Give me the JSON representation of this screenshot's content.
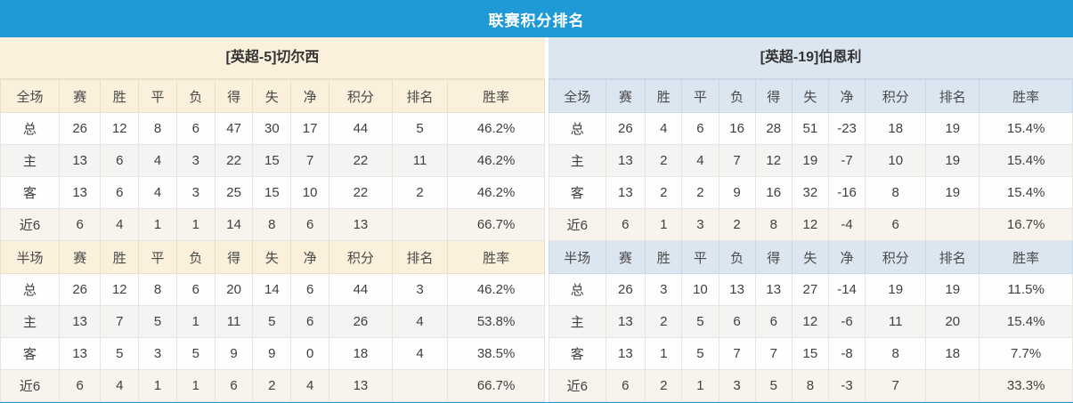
{
  "title": "联赛积分排名",
  "colors": {
    "accent_blue": "#1F9AD7",
    "cream_header": "#FAF0DB",
    "blue_header": "#DCE6F1",
    "points_red": "#E54527",
    "rank_blue": "#3E8EC8",
    "home_label_red": "#C52233",
    "away_label_blue": "#2424AE"
  },
  "column_keys": [
    "scope",
    "matches",
    "wins",
    "draws",
    "losses",
    "goals-for",
    "goals-against",
    "goal-diff",
    "points",
    "rank",
    "win-rate"
  ],
  "row_types": [
    "total",
    "home",
    "away",
    "recent6"
  ],
  "tables": [
    {
      "team_label": "[英超-5]切尔西",
      "theme": "cream",
      "sections": [
        {
          "id": "full",
          "header": [
            "全场",
            "赛",
            "胜",
            "平",
            "负",
            "得",
            "失",
            "净",
            "积分",
            "排名",
            "胜率"
          ],
          "rows": [
            [
              "总",
              "26",
              "12",
              "8",
              "6",
              "47",
              "30",
              "17",
              "44",
              "5",
              "46.2%"
            ],
            [
              "主",
              "13",
              "6",
              "4",
              "3",
              "22",
              "15",
              "7",
              "22",
              "11",
              "46.2%"
            ],
            [
              "客",
              "13",
              "6",
              "4",
              "3",
              "25",
              "15",
              "10",
              "22",
              "2",
              "46.2%"
            ],
            [
              "近6",
              "6",
              "4",
              "1",
              "1",
              "14",
              "8",
              "6",
              "13",
              "",
              "66.7%"
            ]
          ]
        },
        {
          "id": "half",
          "header": [
            "半场",
            "赛",
            "胜",
            "平",
            "负",
            "得",
            "失",
            "净",
            "积分",
            "排名",
            "胜率"
          ],
          "rows": [
            [
              "总",
              "26",
              "12",
              "8",
              "6",
              "20",
              "14",
              "6",
              "44",
              "3",
              "46.2%"
            ],
            [
              "主",
              "13",
              "7",
              "5",
              "1",
              "11",
              "5",
              "6",
              "26",
              "4",
              "53.8%"
            ],
            [
              "客",
              "13",
              "5",
              "3",
              "5",
              "9",
              "9",
              "0",
              "18",
              "4",
              "38.5%"
            ],
            [
              "近6",
              "6",
              "4",
              "1",
              "1",
              "6",
              "2",
              "4",
              "13",
              "",
              "66.7%"
            ]
          ]
        }
      ]
    },
    {
      "team_label": "[英超-19]伯恩利",
      "theme": "blue",
      "sections": [
        {
          "id": "full",
          "header": [
            "全场",
            "赛",
            "胜",
            "平",
            "负",
            "得",
            "失",
            "净",
            "积分",
            "排名",
            "胜率"
          ],
          "rows": [
            [
              "总",
              "26",
              "4",
              "6",
              "16",
              "28",
              "51",
              "-23",
              "18",
              "19",
              "15.4%"
            ],
            [
              "主",
              "13",
              "2",
              "4",
              "7",
              "12",
              "19",
              "-7",
              "10",
              "19",
              "15.4%"
            ],
            [
              "客",
              "13",
              "2",
              "2",
              "9",
              "16",
              "32",
              "-16",
              "8",
              "19",
              "15.4%"
            ],
            [
              "近6",
              "6",
              "1",
              "3",
              "2",
              "8",
              "12",
              "-4",
              "6",
              "",
              "16.7%"
            ]
          ]
        },
        {
          "id": "half",
          "header": [
            "半场",
            "赛",
            "胜",
            "平",
            "负",
            "得",
            "失",
            "净",
            "积分",
            "排名",
            "胜率"
          ],
          "rows": [
            [
              "总",
              "26",
              "3",
              "10",
              "13",
              "13",
              "27",
              "-14",
              "19",
              "19",
              "11.5%"
            ],
            [
              "主",
              "13",
              "2",
              "5",
              "6",
              "6",
              "12",
              "-6",
              "11",
              "20",
              "15.4%"
            ],
            [
              "客",
              "13",
              "1",
              "5",
              "7",
              "7",
              "15",
              "-8",
              "8",
              "18",
              "7.7%"
            ],
            [
              "近6",
              "6",
              "2",
              "1",
              "3",
              "5",
              "8",
              "-3",
              "7",
              "",
              "33.3%"
            ]
          ]
        }
      ]
    }
  ]
}
